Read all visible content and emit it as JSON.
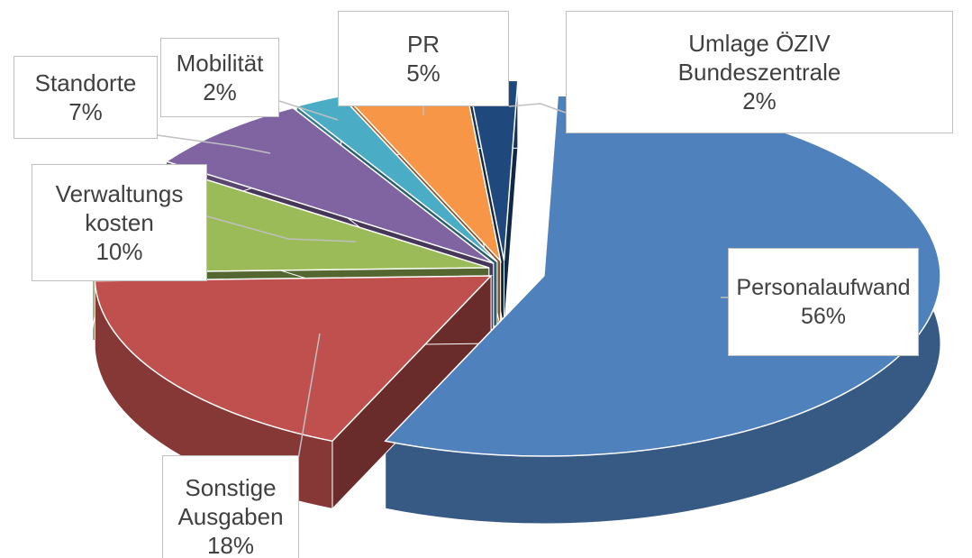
{
  "chart_data": {
    "type": "pie",
    "categories": [
      "Personalaufwand",
      "Sonstige Ausgaben",
      "Verwaltungs kosten",
      "Standorte",
      "Mobilität",
      "PR",
      "Umlage ÖZIV Bundeszentrale"
    ],
    "values": [
      56,
      18,
      10,
      7,
      2,
      5,
      2
    ],
    "value_labels": [
      "56%",
      "18%",
      "10%",
      "7%",
      "2%",
      "5%",
      "2%"
    ],
    "colors": [
      "#4f81bd",
      "#c0504d",
      "#9bbb59",
      "#8064a2",
      "#4bacc6",
      "#f79646",
      "#1f497d"
    ]
  }
}
